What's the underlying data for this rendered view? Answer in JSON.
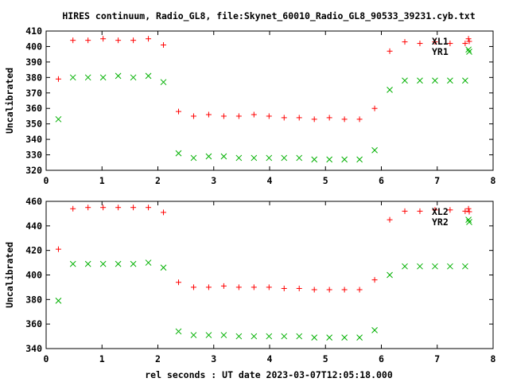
{
  "title": "HIRES continuum, Radio_GL8, file:Skynet_60010_Radio_GL8_90533_39231.cyb.txt",
  "xlabel": "rel seconds : UT date 2023-03-07T12:05:18.000",
  "colors": {
    "red": "#ff0000",
    "green": "#00b000",
    "axes": "#000000"
  },
  "chart_data": [
    {
      "type": "scatter",
      "ylabel": "Uncalibrated",
      "xlim": [
        0,
        8
      ],
      "ylim": [
        320,
        410
      ],
      "xticks": [
        0,
        1,
        2,
        3,
        4,
        5,
        6,
        7,
        8
      ],
      "yticks": [
        320,
        330,
        340,
        350,
        360,
        370,
        380,
        390,
        400,
        410
      ],
      "legend_position": "top-right",
      "series": [
        {
          "name": "XL1",
          "marker": "plus",
          "color": "#ff0000",
          "x": [
            0.22,
            0.48,
            0.75,
            1.02,
            1.29,
            1.56,
            1.83,
            2.1,
            2.37,
            2.64,
            2.91,
            3.18,
            3.45,
            3.72,
            3.99,
            4.26,
            4.53,
            4.8,
            5.07,
            5.34,
            5.61,
            5.88,
            6.15,
            6.42,
            6.69,
            6.96,
            7.23,
            7.5,
            7.56
          ],
          "y": [
            379,
            404,
            404,
            405,
            404,
            404,
            405,
            401,
            358,
            355,
            356,
            355,
            355,
            356,
            355,
            354,
            354,
            353,
            354,
            353,
            353,
            360,
            397,
            403,
            402,
            403,
            402,
            402,
            405
          ]
        },
        {
          "name": "YR1",
          "marker": "cross",
          "color": "#00b000",
          "x": [
            0.22,
            0.48,
            0.75,
            1.02,
            1.29,
            1.56,
            1.83,
            2.1,
            2.37,
            2.64,
            2.91,
            3.18,
            3.45,
            3.72,
            3.99,
            4.26,
            4.53,
            4.8,
            5.07,
            5.34,
            5.61,
            5.88,
            6.15,
            6.42,
            6.69,
            6.96,
            7.23,
            7.5,
            7.56
          ],
          "y": [
            353,
            380,
            380,
            380,
            381,
            380,
            381,
            377,
            331,
            328,
            329,
            329,
            328,
            328,
            328,
            328,
            328,
            327,
            327,
            327,
            327,
            333,
            372,
            378,
            378,
            378,
            378,
            378,
            398
          ]
        }
      ]
    },
    {
      "type": "scatter",
      "ylabel": "Uncalibrated",
      "xlim": [
        0,
        8
      ],
      "ylim": [
        340,
        460
      ],
      "xticks": [
        0,
        1,
        2,
        3,
        4,
        5,
        6,
        7,
        8
      ],
      "yticks": [
        340,
        360,
        380,
        400,
        420,
        440,
        460
      ],
      "legend_position": "top-right",
      "series": [
        {
          "name": "XL2",
          "marker": "plus",
          "color": "#ff0000",
          "x": [
            0.22,
            0.48,
            0.75,
            1.02,
            1.29,
            1.56,
            1.83,
            2.1,
            2.37,
            2.64,
            2.91,
            3.18,
            3.45,
            3.72,
            3.99,
            4.26,
            4.53,
            4.8,
            5.07,
            5.34,
            5.61,
            5.88,
            6.15,
            6.42,
            6.69,
            6.96,
            7.23,
            7.5,
            7.56
          ],
          "y": [
            421,
            454,
            455,
            455,
            455,
            455,
            455,
            451,
            394,
            390,
            390,
            391,
            390,
            390,
            390,
            389,
            389,
            388,
            388,
            388,
            388,
            396,
            445,
            452,
            452,
            453,
            453,
            452,
            454
          ]
        },
        {
          "name": "YR2",
          "marker": "cross",
          "color": "#00b000",
          "x": [
            0.22,
            0.48,
            0.75,
            1.02,
            1.29,
            1.56,
            1.83,
            2.1,
            2.37,
            2.64,
            2.91,
            3.18,
            3.45,
            3.72,
            3.99,
            4.26,
            4.53,
            4.8,
            5.07,
            5.34,
            5.61,
            5.88,
            6.15,
            6.42,
            6.69,
            6.96,
            7.23,
            7.5,
            7.56
          ],
          "y": [
            379,
            409,
            409,
            409,
            409,
            409,
            410,
            406,
            354,
            351,
            351,
            351,
            350,
            350,
            350,
            350,
            350,
            349,
            349,
            349,
            349,
            355,
            400,
            407,
            407,
            407,
            407,
            407,
            445
          ]
        }
      ]
    }
  ]
}
